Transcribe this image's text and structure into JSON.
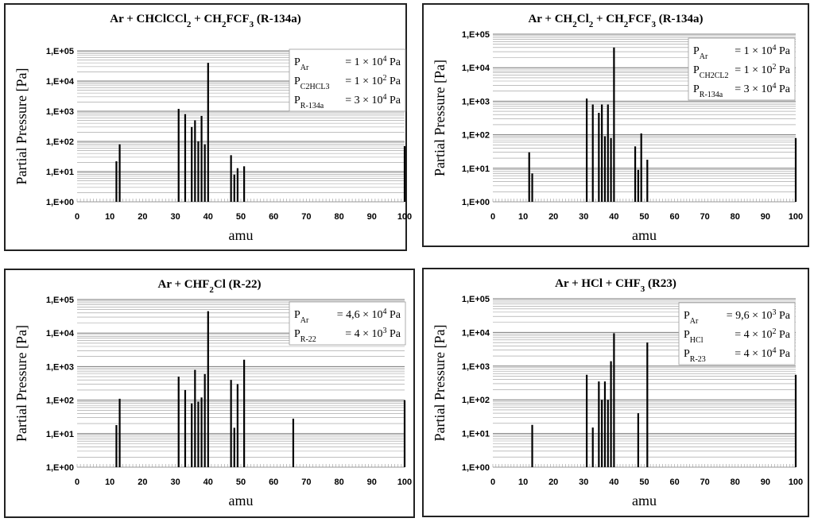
{
  "chart_data": [
    {
      "type": "bar",
      "title_parts": [
        [
          "Ar + CHClCCl",
          ""
        ],
        [
          "2",
          "sub"
        ],
        [
          " + CH",
          ""
        ],
        [
          "2",
          "sub"
        ],
        [
          "FCF",
          ""
        ],
        [
          "3",
          "sub"
        ],
        [
          " (R-134a)",
          ""
        ]
      ],
      "xlabel": "amu",
      "ylabel": "Partial Pressure [Pa]",
      "yscale": "log",
      "ylim": [
        1,
        100000
      ],
      "xlim": [
        0,
        100
      ],
      "yticks": [
        "1,E+00",
        "1,E+01",
        "1,E+02",
        "1,E+03",
        "1,E+04",
        "1,E+05"
      ],
      "xticks": [
        "0",
        "10",
        "20",
        "30",
        "40",
        "50",
        "60",
        "70",
        "80",
        "90",
        "100"
      ],
      "grid": true,
      "legend_position": "top-right",
      "legend": [
        {
          "symbol": "P",
          "sub": "Ar",
          "value_parts": [
            [
              "= 1 × 10",
              ""
            ],
            [
              "4",
              "sup"
            ],
            [
              " Pa",
              ""
            ]
          ]
        },
        {
          "symbol": "P",
          "sub": "C2HCL3",
          "value_parts": [
            [
              "= 1 × 10",
              ""
            ],
            [
              "2",
              "sup"
            ],
            [
              " Pa",
              ""
            ]
          ]
        },
        {
          "symbol": "P",
          "sub": "R-134a",
          "value_parts": [
            [
              "= 3 × 10",
              ""
            ],
            [
              "4",
              "sup"
            ],
            [
              " Pa",
              ""
            ]
          ]
        }
      ],
      "x": [
        12,
        13,
        31,
        33,
        35,
        36,
        37,
        38,
        39,
        40,
        47,
        48,
        49,
        51,
        100
      ],
      "values": [
        22,
        80,
        1200,
        800,
        300,
        500,
        100,
        700,
        80,
        40000,
        35,
        8,
        13,
        15,
        70
      ]
    },
    {
      "type": "bar",
      "title_parts": [
        [
          "Ar + CH",
          ""
        ],
        [
          "2",
          "sub"
        ],
        [
          "Cl",
          ""
        ],
        [
          "2",
          "sub"
        ],
        [
          " + CH",
          ""
        ],
        [
          "2",
          "sub"
        ],
        [
          "FCF",
          ""
        ],
        [
          "3",
          "sub"
        ],
        [
          " (R-134a)",
          ""
        ]
      ],
      "xlabel": "amu",
      "ylabel": "Partial Pressure [Pa]",
      "yscale": "log",
      "ylim": [
        1,
        100000
      ],
      "xlim": [
        0,
        100
      ],
      "yticks": [
        "1,E+00",
        "1,E+01",
        "1,E+02",
        "1,E+03",
        "1,E+04",
        "1,E+05"
      ],
      "xticks": [
        "0",
        "10",
        "20",
        "30",
        "40",
        "50",
        "60",
        "70",
        "80",
        "90",
        "100"
      ],
      "grid": true,
      "legend_position": "top-right",
      "legend": [
        {
          "symbol": "P",
          "sub": "Ar",
          "value_parts": [
            [
              "= 1 × 10",
              ""
            ],
            [
              "4",
              "sup"
            ],
            [
              " Pa",
              ""
            ]
          ]
        },
        {
          "symbol": "P",
          "sub": "CH2CL2",
          "value_parts": [
            [
              "= 1 × 10",
              ""
            ],
            [
              "2",
              "sup"
            ],
            [
              " Pa",
              ""
            ]
          ]
        },
        {
          "symbol": "P",
          "sub": "R-134a",
          "value_parts": [
            [
              "= 3 × 10",
              ""
            ],
            [
              "4",
              "sup"
            ],
            [
              " Pa",
              ""
            ]
          ]
        }
      ],
      "x": [
        12,
        13,
        31,
        33,
        35,
        36,
        37,
        38,
        39,
        40,
        47,
        48,
        49,
        51,
        100
      ],
      "values": [
        30,
        7,
        1200,
        800,
        450,
        800,
        90,
        800,
        80,
        40000,
        45,
        9,
        110,
        18,
        80
      ]
    },
    {
      "type": "bar",
      "title_parts": [
        [
          "Ar + CHF",
          ""
        ],
        [
          "2",
          "sub"
        ],
        [
          "Cl (R-22)",
          ""
        ]
      ],
      "xlabel": "amu",
      "ylabel": "Partial Pressure [Pa]",
      "yscale": "log",
      "ylim": [
        1,
        100000
      ],
      "xlim": [
        0,
        100
      ],
      "yticks": [
        "1,E+00",
        "1,E+01",
        "1,E+02",
        "1,E+03",
        "1,E+04",
        "1,E+05"
      ],
      "xticks": [
        "0",
        "10",
        "20",
        "30",
        "40",
        "50",
        "60",
        "70",
        "80",
        "90",
        "100"
      ],
      "grid": true,
      "legend_position": "top-right",
      "legend": [
        {
          "symbol": "P",
          "sub": "Ar",
          "value_parts": [
            [
              "= 4,6 × 10",
              ""
            ],
            [
              "4",
              "sup"
            ],
            [
              " Pa",
              ""
            ]
          ]
        },
        {
          "symbol": "P",
          "sub": "R-22",
          "value_parts": [
            [
              "= 4 × 10",
              ""
            ],
            [
              "3",
              "sup"
            ],
            [
              " Pa",
              ""
            ]
          ]
        }
      ],
      "x": [
        12,
        13,
        31,
        33,
        35,
        36,
        37,
        38,
        39,
        40,
        47,
        48,
        49,
        51,
        66,
        100
      ],
      "values": [
        18,
        110,
        500,
        200,
        80,
        800,
        90,
        120,
        600,
        45000,
        400,
        15,
        300,
        1600,
        28,
        100
      ]
    },
    {
      "type": "bar",
      "title_parts": [
        [
          "Ar + HCl + CHF",
          ""
        ],
        [
          "3",
          "sub"
        ],
        [
          " (R23)",
          ""
        ]
      ],
      "xlabel": "amu",
      "ylabel": "Partial Pressure [Pa]",
      "yscale": "log",
      "ylim": [
        1,
        100000
      ],
      "xlim": [
        0,
        100
      ],
      "yticks": [
        "1,E+00",
        "1,E+01",
        "1,E+02",
        "1,E+03",
        "1,E+04",
        "1,E+05"
      ],
      "xticks": [
        "0",
        "10",
        "20",
        "30",
        "40",
        "50",
        "60",
        "70",
        "80",
        "90",
        "100"
      ],
      "grid": true,
      "legend_position": "top-right",
      "legend": [
        {
          "symbol": "P",
          "sub": "Ar",
          "value_parts": [
            [
              "= 9,6 × 10",
              ""
            ],
            [
              "3",
              "sup"
            ],
            [
              " Pa",
              ""
            ]
          ]
        },
        {
          "symbol": "P",
          "sub": "HCl",
          "value_parts": [
            [
              "= 4 × 10",
              ""
            ],
            [
              "2",
              "sup"
            ],
            [
              " Pa",
              ""
            ]
          ]
        },
        {
          "symbol": "P",
          "sub": "R-23",
          "value_parts": [
            [
              "= 4 × 10",
              ""
            ],
            [
              "4",
              "sup"
            ],
            [
              " Pa",
              ""
            ]
          ]
        }
      ],
      "x": [
        13,
        31,
        33,
        35,
        36,
        37,
        38,
        39,
        40,
        48,
        51,
        100
      ],
      "values": [
        18,
        550,
        15,
        350,
        100,
        350,
        100,
        1400,
        9500,
        40,
        5000,
        550
      ]
    }
  ]
}
